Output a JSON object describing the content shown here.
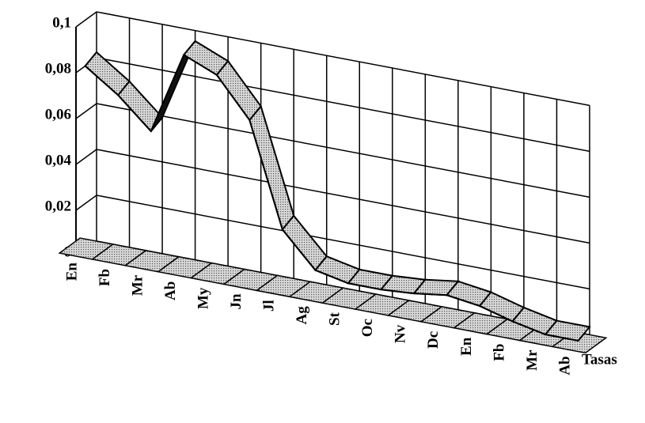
{
  "chart_data": {
    "type": "line3d",
    "categories": [
      "En",
      "Fb",
      "Mr",
      "Ab",
      "My",
      "Jn",
      "Jl",
      "Ag",
      "St",
      "Oc",
      "Nv",
      "Dc",
      "En",
      "Fb",
      "Mr",
      "Ab"
    ],
    "series": [
      {
        "name": "Tasas",
        "color": "#a8a8a8",
        "values": [
          0.08,
          0.07,
          0.057,
          0.093,
          0.087,
          0.07,
          0.025,
          0.01,
          0.007,
          0.007,
          0.008,
          0.01,
          0.008,
          0.004,
          0.001,
          0.001
        ]
      }
    ],
    "ylim": [
      0,
      0.1
    ],
    "yticks": [
      0,
      {
        "value": 0.02,
        "label": "0,02"
      },
      {
        "value": 0.04,
        "label": "0,04"
      },
      {
        "value": 0.06,
        "label": "0,06"
      },
      {
        "value": 0.08,
        "label": "0,08"
      },
      {
        "value": 0.1,
        "label": "0,1"
      }
    ],
    "grid": true
  }
}
